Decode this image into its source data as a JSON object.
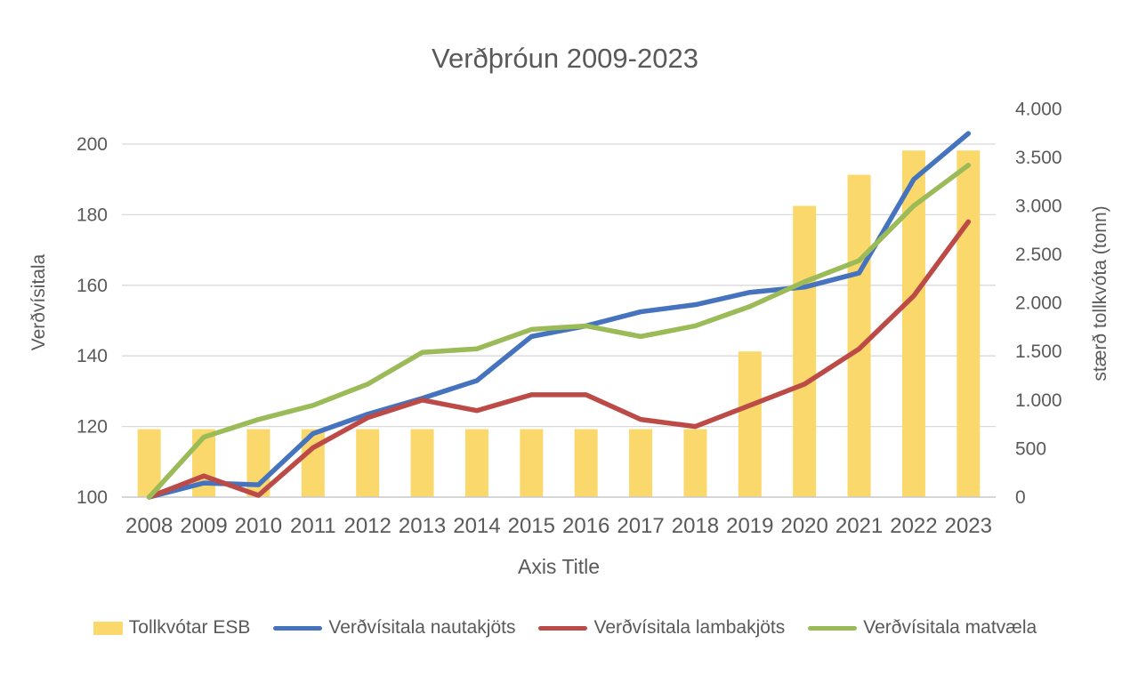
{
  "chart_data": {
    "type": "combo-bar-line",
    "title": "Verðþróun 2009-2023",
    "x_axis_title": "Axis Title",
    "left_axis_title": "Verðvísitala",
    "right_axis_title": "stærð tollkvóta (tonn)",
    "categories": [
      "2008",
      "2009",
      "2010",
      "2011",
      "2012",
      "2013",
      "2014",
      "2015",
      "2016",
      "2017",
      "2018",
      "2019",
      "2020",
      "2021",
      "2022",
      "2023"
    ],
    "left_axis": {
      "min": 100,
      "max": 210,
      "tick_values": [
        100,
        120,
        140,
        160,
        180,
        200
      ],
      "tick_labels": [
        "100",
        "120",
        "140",
        "160",
        "180",
        "200"
      ]
    },
    "right_axis": {
      "min": 0,
      "max": 4000,
      "tick_values": [
        0,
        500,
        1000,
        1500,
        2000,
        2500,
        3000,
        3500,
        4000
      ],
      "tick_labels": [
        "0",
        "500",
        "1.000",
        "1.500",
        "2.000",
        "2.500",
        "3.000",
        "3.500",
        "4.000"
      ]
    },
    "grid": true,
    "legend_position": "bottom",
    "bar_series": {
      "key": "tollkvotar-esb",
      "name": "Tollkvótar ESB",
      "axis": "right",
      "color": "#FAD86B",
      "values": [
        700,
        700,
        700,
        700,
        700,
        700,
        700,
        700,
        700,
        700,
        700,
        1500,
        3000,
        3320,
        3570,
        3570
      ]
    },
    "line_series": [
      {
        "key": "verdvisitala-nautakjots",
        "name": "Verðvísitala nautakjöts",
        "axis": "left",
        "color": "#4673BE",
        "values": [
          100,
          104,
          103.5,
          118,
          123.5,
          128,
          133,
          145.5,
          148.5,
          152.5,
          154.5,
          158,
          159.5,
          163.5,
          190,
          203
        ]
      },
      {
        "key": "verdvisitala-lambakjots",
        "name": "Verðvísitala lambakjöts",
        "axis": "left",
        "color": "#BC4A47",
        "values": [
          100,
          106,
          100.5,
          114,
          122.5,
          127.5,
          124.5,
          129,
          129,
          122,
          120,
          126,
          132,
          142,
          157,
          178
        ]
      },
      {
        "key": "verdvisitala-matvaela",
        "name": "Verðvísitala matvæla",
        "axis": "left",
        "color": "#9BBA58",
        "values": [
          100,
          117,
          122,
          126,
          132,
          141,
          142,
          147.5,
          148.5,
          145.5,
          148.5,
          154,
          161,
          167,
          182.5,
          194
        ]
      }
    ],
    "colors": {
      "gridline": "#D9D9D9",
      "axis_line": "#C9C9C9",
      "text": "#595959"
    }
  }
}
